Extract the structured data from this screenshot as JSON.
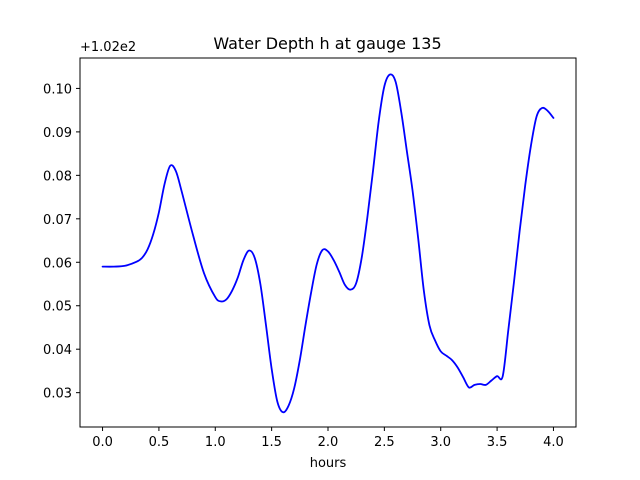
{
  "chart_data": {
    "type": "line",
    "title": "Water Depth h at gauge 135",
    "xlabel": "hours",
    "ylabel": "",
    "offset_text": "+1.02e2",
    "xlim": [
      -0.2,
      4.2
    ],
    "ylim": [
      0.0221,
      0.107
    ],
    "grid": false,
    "x_ticks": [
      0.0,
      0.5,
      1.0,
      1.5,
      2.0,
      2.5,
      3.0,
      3.5,
      4.0
    ],
    "x_tick_labels": [
      "0.0",
      "0.5",
      "1.0",
      "1.5",
      "2.0",
      "2.5",
      "3.0",
      "3.5",
      "4.0"
    ],
    "y_ticks": [
      0.03,
      0.04,
      0.05,
      0.06,
      0.07,
      0.08,
      0.09,
      0.1
    ],
    "y_tick_labels": [
      "0.03",
      "0.04",
      "0.05",
      "0.06",
      "0.07",
      "0.08",
      "0.09",
      "0.10"
    ],
    "series": [
      {
        "color": "#0000ff",
        "x": [
          0.0,
          0.1,
          0.2,
          0.3,
          0.35,
          0.4,
          0.45,
          0.5,
          0.55,
          0.6,
          0.65,
          0.7,
          0.8,
          0.9,
          1.0,
          1.05,
          1.1,
          1.15,
          1.2,
          1.25,
          1.3,
          1.35,
          1.4,
          1.45,
          1.5,
          1.55,
          1.6,
          1.65,
          1.7,
          1.75,
          1.8,
          1.85,
          1.9,
          1.95,
          2.0,
          2.05,
          2.1,
          2.15,
          2.2,
          2.25,
          2.3,
          2.35,
          2.4,
          2.45,
          2.5,
          2.55,
          2.6,
          2.65,
          2.7,
          2.75,
          2.8,
          2.85,
          2.9,
          2.95,
          3.0,
          3.05,
          3.1,
          3.15,
          3.2,
          3.25,
          3.3,
          3.35,
          3.4,
          3.45,
          3.5,
          3.55,
          3.6,
          3.65,
          3.7,
          3.75,
          3.8,
          3.85,
          3.9,
          3.95,
          4.0
        ],
        "y": [
          0.059,
          0.059,
          0.0592,
          0.0601,
          0.061,
          0.063,
          0.0665,
          0.0715,
          0.078,
          0.0822,
          0.081,
          0.0765,
          0.0665,
          0.0575,
          0.052,
          0.051,
          0.0515,
          0.0535,
          0.0565,
          0.0605,
          0.0627,
          0.061,
          0.055,
          0.0455,
          0.0355,
          0.028,
          0.0255,
          0.027,
          0.031,
          0.0375,
          0.0455,
          0.053,
          0.0595,
          0.0628,
          0.0625,
          0.0605,
          0.0578,
          0.0548,
          0.0537,
          0.0552,
          0.0612,
          0.0705,
          0.0812,
          0.0925,
          0.1005,
          0.1032,
          0.1015,
          0.0945,
          0.0855,
          0.0765,
          0.0655,
          0.0535,
          0.0455,
          0.042,
          0.0395,
          0.0385,
          0.0375,
          0.0358,
          0.0335,
          0.0312,
          0.0318,
          0.032,
          0.0318,
          0.0328,
          0.0338,
          0.0338,
          0.0445,
          0.0555,
          0.0672,
          0.0778,
          0.0868,
          0.0935,
          0.0955,
          0.0948,
          0.0932
        ]
      }
    ]
  }
}
